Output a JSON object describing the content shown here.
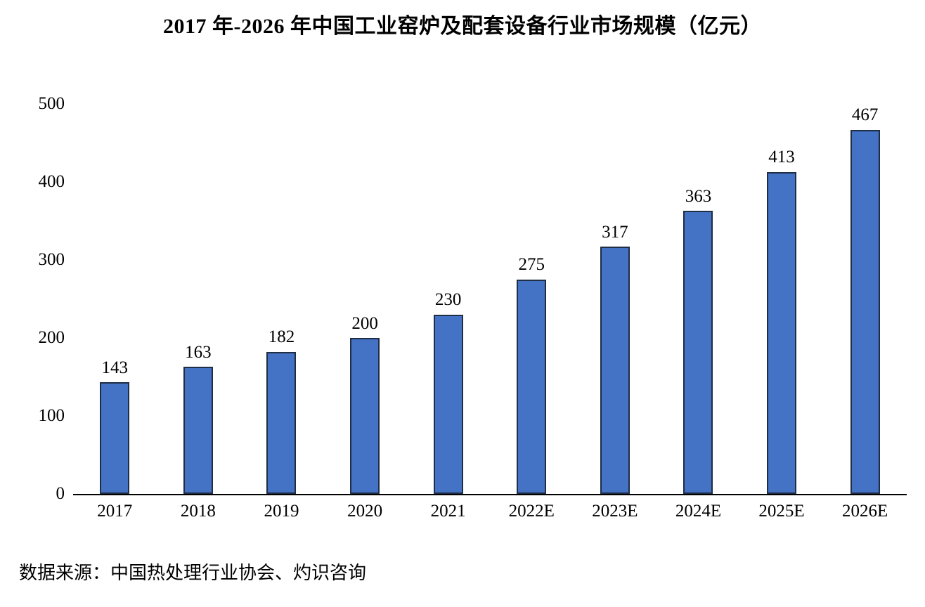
{
  "chart_data": {
    "type": "bar",
    "title": "2017 年-2026 年中国工业窑炉及配套设备行业市场规模（亿元）",
    "categories": [
      "2017",
      "2018",
      "2019",
      "2020",
      "2021",
      "2022E",
      "2023E",
      "2024E",
      "2025E",
      "2026E"
    ],
    "values": [
      143,
      163,
      182,
      200,
      230,
      275,
      317,
      363,
      413,
      467
    ],
    "xlabel": "",
    "ylabel": "",
    "ylim": [
      0,
      500
    ],
    "y_ticks": [
      0,
      100,
      200,
      300,
      400,
      500
    ],
    "grid": false,
    "legend": null,
    "value_labels": true,
    "colors": {
      "bar_fill": "#4472C4",
      "bar_border": "#1f2d45",
      "axis_line": "#000000",
      "text": "#000000"
    }
  },
  "source_note": "数据来源：中国热处理行业协会、灼识咨询"
}
